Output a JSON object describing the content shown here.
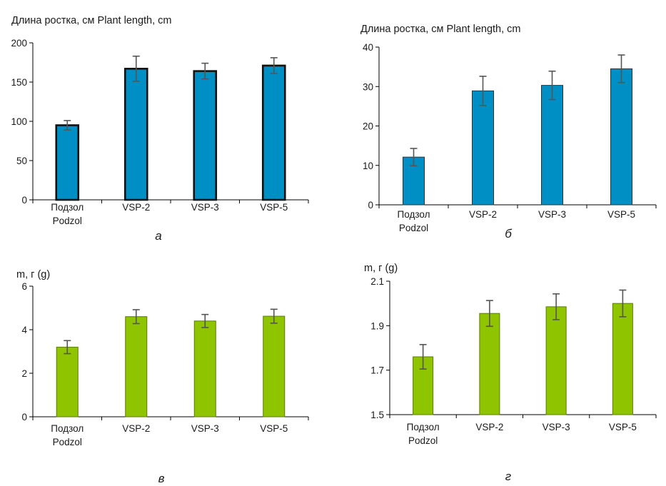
{
  "chart_data": [
    {
      "type": "bar",
      "panel_label": "а",
      "title": "Длина ростка, см   Plant length, cm",
      "ylabel": "Длина ростка, см   Plant length, cm",
      "categories": [
        "Подзол|Podzol",
        "VSP-2",
        "VSP-3",
        "VSP-5"
      ],
      "values": [
        95,
        167,
        164,
        171
      ],
      "errors": [
        6,
        16,
        10,
        10
      ],
      "ylim": [
        0,
        200
      ],
      "yticks": [
        0,
        50,
        100,
        150,
        200
      ],
      "tick_labels": [
        "0",
        "50",
        "100",
        "150",
        "200"
      ],
      "bar_color": "#008fc4",
      "bar_outline": "#111111",
      "grid": false
    },
    {
      "type": "bar",
      "panel_label": "б",
      "title": "Длина ростка, см   Plant length, cm",
      "ylabel": "Длина ростка, см   Plant length, cm",
      "categories": [
        "Подзол|Podzol",
        "VSP-2",
        "VSP-3",
        "VSP-5"
      ],
      "values": [
        12.1,
        28.9,
        30.3,
        34.5
      ],
      "errors": [
        2.2,
        3.7,
        3.6,
        3.5
      ],
      "ylim": [
        0,
        40
      ],
      "yticks": [
        0,
        10,
        20,
        30,
        40
      ],
      "tick_labels": [
        "0",
        "10",
        "20",
        "30",
        "40"
      ],
      "bar_color": "#008fc4",
      "bar_outline": "#333333",
      "grid": false
    },
    {
      "type": "bar",
      "panel_label": "в",
      "title": "m, г (g)",
      "ylabel": "m, г (g)",
      "categories": [
        "Подзол|Podzol",
        "VSP-2",
        "VSP-3",
        "VSP-5"
      ],
      "values": [
        3.2,
        4.6,
        4.4,
        4.62
      ],
      "errors": [
        0.3,
        0.32,
        0.3,
        0.32
      ],
      "ylim": [
        0,
        6
      ],
      "yticks": [
        0,
        2,
        4,
        6
      ],
      "tick_labels": [
        "0",
        "2",
        "4",
        "6"
      ],
      "bar_color": "#8ec400",
      "bar_outline": "#5a7d00",
      "grid": false
    },
    {
      "type": "bar",
      "panel_label": "г",
      "title": "m, г (g)",
      "ylabel": "m, г (g)",
      "categories": [
        "Подзол|Podzol",
        "VSP-2",
        "VSP-3",
        "VSP-5"
      ],
      "values": [
        1.76,
        1.955,
        1.985,
        2.0
      ],
      "errors": [
        0.055,
        0.058,
        0.058,
        0.06
      ],
      "ylim": [
        1.5,
        2.1
      ],
      "yticks": [
        1.5,
        1.7,
        1.9,
        2.1
      ],
      "tick_labels": [
        "1.5",
        "1.7",
        "1.9",
        "2.1"
      ],
      "bar_color": "#8ec400",
      "bar_outline": "#5a7d00",
      "grid": false
    }
  ]
}
